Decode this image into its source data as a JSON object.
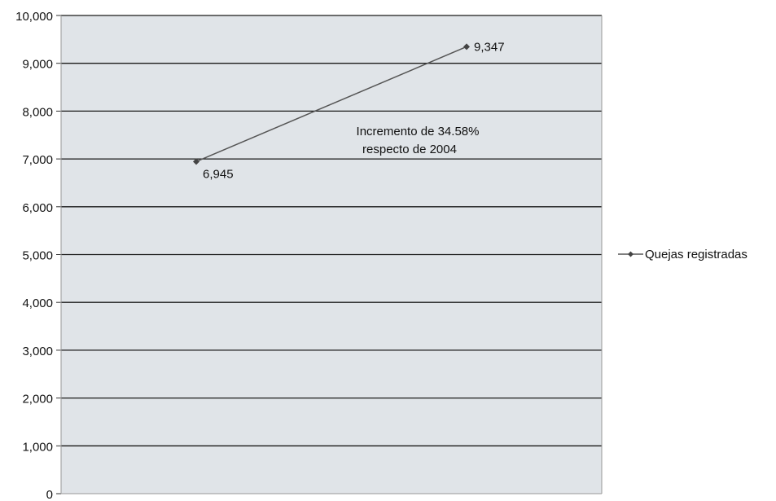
{
  "chart_data": {
    "type": "line",
    "title": "",
    "xlabel": "",
    "ylabel": "",
    "ylim": [
      0,
      10000
    ],
    "y_ticks": [
      0,
      1000,
      2000,
      3000,
      4000,
      5000,
      6000,
      7000,
      8000,
      9000,
      10000
    ],
    "y_tick_labels": [
      "0",
      "1,000",
      "2,000",
      "3,000",
      "4,000",
      "5,000",
      "6,000",
      "7,000",
      "8,000",
      "9,000",
      "10,000"
    ],
    "categories": [
      "",
      ""
    ],
    "grid": true,
    "legend_position": "right",
    "series": [
      {
        "name": "Quejas registradas",
        "values": [
          6945,
          9347
        ],
        "data_labels": [
          "6,945",
          "9,347"
        ]
      }
    ],
    "annotations": [
      "Incremento de 34.58%",
      "respecto de 2004"
    ]
  },
  "colors": {
    "plot_background": "#e0e4e8",
    "line": "#555555",
    "gridline": "#1a1a1a"
  }
}
